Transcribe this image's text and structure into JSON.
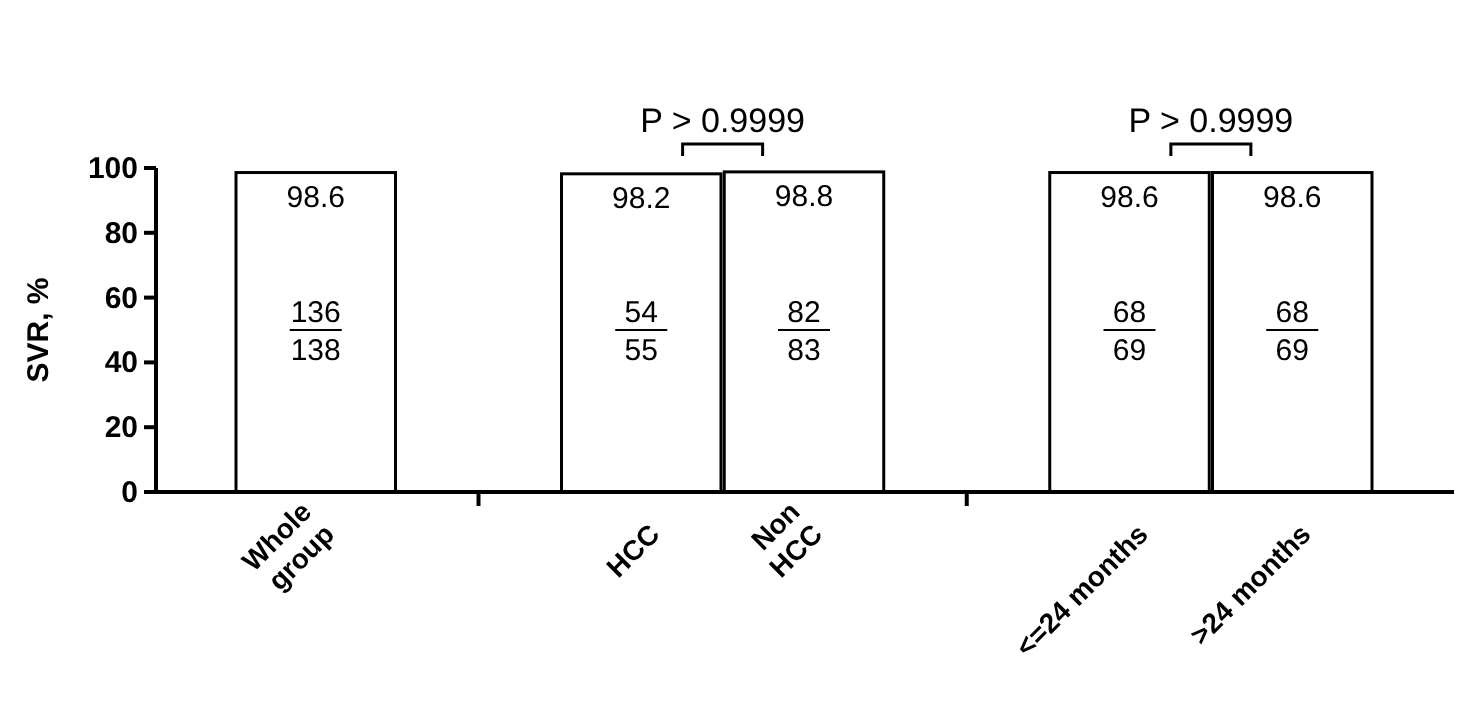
{
  "chart_data": {
    "type": "bar",
    "ylabel": "SVR, %",
    "categories": [
      "Whole\ngroup",
      null,
      "HCC",
      "Non\nHCC",
      null,
      "<=24 months",
      ">24 months"
    ],
    "values": [
      98.6,
      null,
      98.2,
      98.8,
      null,
      98.6,
      98.6
    ],
    "color": "#ffffff",
    "ylim": [
      0,
      100
    ],
    "yticks": [
      0,
      20,
      40,
      60,
      80,
      100
    ],
    "data_labels": true,
    "annotations": [
      "136",
      "138",
      "54",
      "55",
      "82",
      "83",
      "68",
      "69",
      "68",
      "69",
      "P > 0.9999",
      "P > 0.9999"
    ]
  }
}
